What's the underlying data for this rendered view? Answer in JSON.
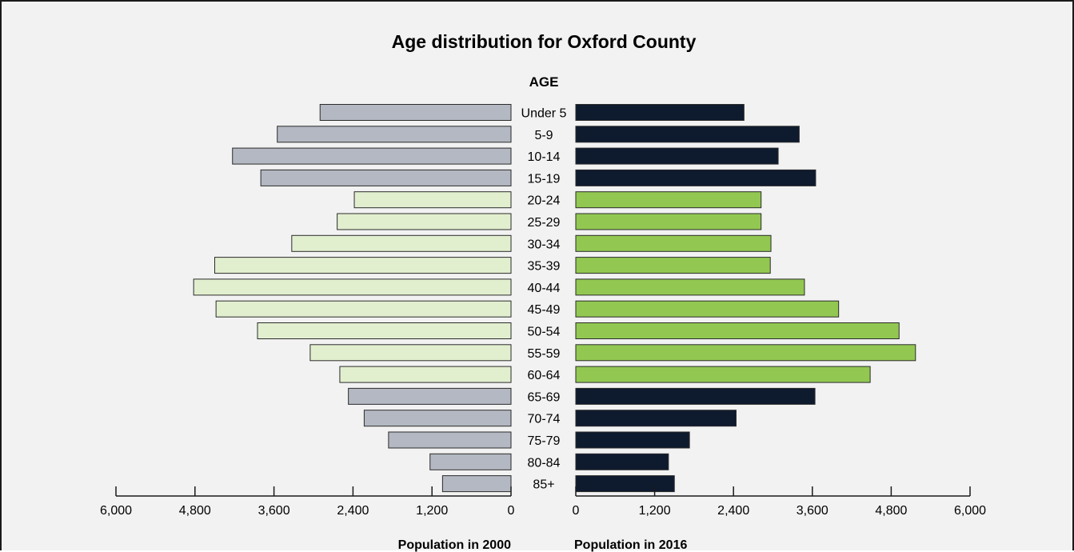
{
  "chart_data": {
    "type": "bar",
    "subtype": "population-pyramid",
    "title": "Age distribution for Oxford County",
    "category_axis_label": "AGE",
    "categories": [
      "Under 5",
      "5-9",
      "10-14",
      "15-19",
      "20-24",
      "25-29",
      "30-34",
      "35-39",
      "40-44",
      "45-49",
      "50-54",
      "55-59",
      "60-64",
      "65-69",
      "70-74",
      "75-79",
      "80-84",
      "85+"
    ],
    "series": [
      {
        "name": "Population in 2000",
        "side": "left",
        "values": [
          2900,
          3550,
          4230,
          3800,
          2380,
          2640,
          3330,
          4500,
          4820,
          4480,
          3850,
          3050,
          2600,
          2470,
          2230,
          1860,
          1230,
          1040
        ],
        "category_colors": [
          "#b3b8c2",
          "#b3b8c2",
          "#b3b8c2",
          "#b3b8c2",
          "#e2efcf",
          "#e2efcf",
          "#e2efcf",
          "#e2efcf",
          "#e2efcf",
          "#e2efcf",
          "#e2efcf",
          "#e2efcf",
          "#e2efcf",
          "#b3b8c2",
          "#b3b8c2",
          "#b3b8c2",
          "#b3b8c2",
          "#b3b8c2"
        ]
      },
      {
        "name": "Population in 2016",
        "side": "right",
        "values": [
          2560,
          3400,
          3080,
          3650,
          2820,
          2820,
          2970,
          2960,
          3480,
          4000,
          4920,
          5170,
          4480,
          3640,
          2440,
          1730,
          1410,
          1500
        ],
        "category_colors": [
          "#0e1a2e",
          "#0e1a2e",
          "#0e1a2e",
          "#0e1a2e",
          "#92c851",
          "#92c851",
          "#92c851",
          "#92c851",
          "#92c851",
          "#92c851",
          "#92c851",
          "#92c851",
          "#92c851",
          "#0e1a2e",
          "#0e1a2e",
          "#0e1a2e",
          "#0e1a2e",
          "#0e1a2e"
        ]
      }
    ],
    "xlim": [
      0,
      6000
    ],
    "ticks": [
      0,
      1200,
      2400,
      3600,
      4800,
      6000
    ],
    "tick_labels_left": [
      "6,000",
      "4,800",
      "3,600",
      "2,400",
      "1,200",
      "0"
    ],
    "tick_labels_right": [
      "0",
      "1,200",
      "2,400",
      "3,600",
      "4,800",
      "6,000"
    ],
    "xlabel_left": "Population in 2000",
    "xlabel_right": "Population in 2016",
    "grid": false,
    "legend": "none",
    "background_color": "#f2f2f2"
  }
}
